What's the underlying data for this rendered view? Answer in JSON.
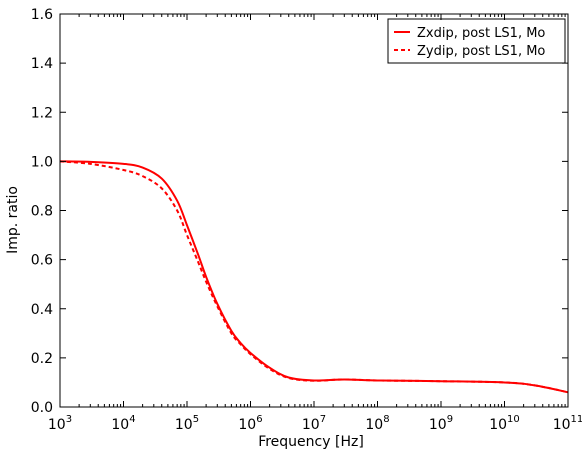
{
  "chart_data": {
    "type": "line",
    "title": "",
    "xlabel": "Frequency [Hz]",
    "ylabel": "Imp. ratio",
    "xscale": "log",
    "xlim": [
      1000,
      100000000000
    ],
    "ylim": [
      0.0,
      1.6
    ],
    "grid": false,
    "legend_position": "top-right",
    "x_ticks": [
      {
        "value": 1000,
        "base": "10",
        "exp": "3"
      },
      {
        "value": 10000,
        "base": "10",
        "exp": "4"
      },
      {
        "value": 100000,
        "base": "10",
        "exp": "5"
      },
      {
        "value": 1000000,
        "base": "10",
        "exp": "6"
      },
      {
        "value": 10000000,
        "base": "10",
        "exp": "7"
      },
      {
        "value": 100000000,
        "base": "10",
        "exp": "8"
      },
      {
        "value": 1000000000,
        "base": "10",
        "exp": "9"
      },
      {
        "value": 10000000000,
        "base": "10",
        "exp": "10"
      },
      {
        "value": 100000000000,
        "base": "10",
        "exp": "11"
      }
    ],
    "y_ticks": [
      "0.0",
      "0.2",
      "0.4",
      "0.6",
      "0.8",
      "1.0",
      "1.2",
      "1.4",
      "1.6"
    ],
    "series": [
      {
        "name": "Zxdip, post LS1, Mo",
        "color": "#ff0000",
        "style": "solid",
        "x": [
          1000,
          3000,
          10000,
          20000,
          40000,
          70000,
          100000,
          150000,
          200000,
          300000,
          500000,
          700000,
          1000000,
          2000000,
          4000000,
          10000000,
          30000000,
          100000000,
          1000000000,
          10000000000,
          30000000000,
          100000000000
        ],
        "y": [
          1.0,
          0.998,
          0.99,
          0.975,
          0.93,
          0.84,
          0.74,
          0.62,
          0.53,
          0.42,
          0.31,
          0.26,
          0.22,
          0.16,
          0.12,
          0.108,
          0.112,
          0.108,
          0.105,
          0.1,
          0.088,
          0.06
        ]
      },
      {
        "name": "Zydip, post LS1, Mo",
        "color": "#ff0000",
        "style": "dashed",
        "x": [
          1000,
          3000,
          10000,
          20000,
          40000,
          70000,
          100000,
          150000,
          200000,
          300000,
          500000,
          700000,
          1000000,
          2000000,
          4000000,
          10000000,
          30000000,
          100000000,
          1000000000,
          10000000000,
          30000000000,
          100000000000
        ],
        "y": [
          1.0,
          0.99,
          0.965,
          0.94,
          0.89,
          0.8,
          0.7,
          0.59,
          0.51,
          0.41,
          0.3,
          0.255,
          0.215,
          0.155,
          0.118,
          0.107,
          0.112,
          0.108,
          0.105,
          0.1,
          0.088,
          0.06
        ]
      }
    ]
  }
}
